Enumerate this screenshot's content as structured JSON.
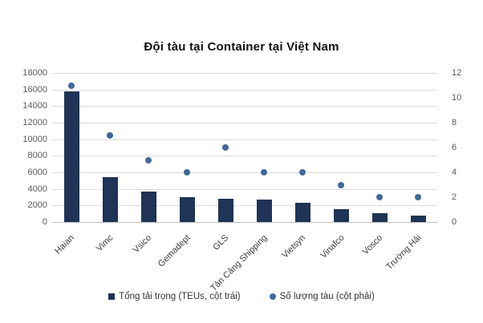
{
  "title": "Đội tàu tại Container tại Việt Nam",
  "colors": {
    "bar": "#1f3456",
    "dot": "#41689b",
    "gridline": "#dcdcdc",
    "axis_line": "#bfbfbf",
    "tick_text": "#595959"
  },
  "legend": {
    "bar_series_label": "Tổng tải trọng (TEUs, cột trái)",
    "dot_series_label": "Số lượng tàu (cột phải)"
  },
  "chart_data": {
    "type": "bar",
    "subtype": "combo-bar-scatter-dual-axis",
    "title": "Đội tàu tại Container tại Việt Nam",
    "categories": [
      "Haian",
      "Vimc",
      "Vsico",
      "Gemadept",
      "GLS",
      "Tân Cảng Shipping",
      "Vietsyn",
      "Vinafco",
      "Vosco",
      "Trường Hải"
    ],
    "series": [
      {
        "name": "Tổng tải trọng (TEUs, cột trái)",
        "type": "bar",
        "axis": "left",
        "values": [
          15800,
          5400,
          3650,
          3000,
          2850,
          2750,
          2350,
          1550,
          1050,
          800
        ]
      },
      {
        "name": "Số lượng tàu (cột phải)",
        "type": "scatter",
        "axis": "right",
        "values": [
          11,
          7,
          5,
          4,
          6,
          4,
          4,
          3,
          2,
          2
        ]
      }
    ],
    "left_axis": {
      "min": 0,
      "max": 18000,
      "step": 2000,
      "ticks": [
        0,
        2000,
        4000,
        6000,
        8000,
        10000,
        12000,
        14000,
        16000,
        18000
      ]
    },
    "right_axis": {
      "min": 0,
      "max": 12,
      "step": 2,
      "ticks": [
        0,
        2,
        4,
        6,
        8,
        10,
        12
      ]
    },
    "grid": true,
    "legend_position": "bottom"
  }
}
